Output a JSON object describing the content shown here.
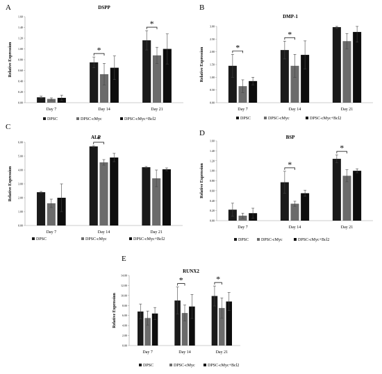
{
  "colors": {
    "DPSC": "#1a1a1a",
    "DPSC-cMyc": "#6b6b6b",
    "DPSC-cMyc+Bcl2": "#0d0d0d",
    "axis": "#9a9a9a",
    "error": "#444444"
  },
  "chart_data": [
    {
      "letter": "A",
      "type": "bar",
      "title": "DSPP",
      "ylabel": "Relative Expression",
      "categories": [
        "Day 7",
        "Day 14",
        "Day 21"
      ],
      "ylim": [
        0,
        1.6
      ],
      "yticks": [
        "0.00",
        "0.20",
        "0.40",
        "0.60",
        "0.80",
        "1.00",
        "1.20",
        "1.40",
        "1.60"
      ],
      "series": [
        {
          "name": "DPSC",
          "values": [
            0.1,
            0.75,
            1.16
          ],
          "errors": [
            0.02,
            0.1,
            0.18
          ]
        },
        {
          "name": "DPSC-cMyc",
          "values": [
            0.07,
            0.53,
            0.88
          ],
          "errors": [
            0.02,
            0.2,
            0.15
          ]
        },
        {
          "name": "DPSC-cMyc+Bcl2",
          "values": [
            0.09,
            0.65,
            1.0
          ],
          "errors": [
            0.05,
            0.22,
            0.28
          ]
        }
      ],
      "significance": [
        {
          "day": "Day 14",
          "label": "*"
        },
        {
          "day": "Day 21",
          "label": "*"
        }
      ],
      "legend": [
        "DPSC",
        "DPSC-cMyc",
        "DPSC-cMyc+Bcl2"
      ]
    },
    {
      "letter": "B",
      "type": "bar",
      "title": "DMP-1",
      "ylabel": "Relative Expression",
      "categories": [
        "Day 7",
        "Day 14",
        "Day 21"
      ],
      "ylim": [
        0,
        3.0
      ],
      "yticks": [
        "0.00",
        "0.50",
        "1.00",
        "1.50",
        "2.00",
        "2.50",
        "3.00"
      ],
      "series": [
        {
          "name": "DPSC",
          "values": [
            1.45,
            2.07,
            2.97
          ],
          "errors": [
            0.45,
            0.35,
            0.05
          ]
        },
        {
          "name": "DPSC-cMyc",
          "values": [
            0.65,
            1.45,
            2.42
          ],
          "errors": [
            0.25,
            0.45,
            0.3
          ]
        },
        {
          "name": "DPSC-cMyc+Bcl2",
          "values": [
            0.85,
            1.88,
            2.78
          ],
          "errors": [
            0.15,
            0.55,
            0.4
          ]
        }
      ],
      "significance": [
        {
          "day": "Day 7",
          "label": "*"
        },
        {
          "day": "Day 14",
          "label": "*"
        }
      ],
      "legend": [
        "DPSC",
        "DPSC-cMyc",
        "DPSC-cMyc+Bcl2"
      ]
    },
    {
      "letter": "C",
      "type": "bar",
      "title": "ALP",
      "ylabel": "Relative Expression",
      "categories": [
        "Day 7",
        "Day 14",
        "Day 21"
      ],
      "ylim": [
        0,
        6.0
      ],
      "yticks": [
        "0.00",
        "1.00",
        "2.00",
        "3.00",
        "4.00",
        "5.00",
        "6.00"
      ],
      "series": [
        {
          "name": "DPSC",
          "values": [
            2.4,
            5.7,
            4.2
          ],
          "errors": [
            0.05,
            0.05,
            0.05
          ]
        },
        {
          "name": "DPSC-cMyc",
          "values": [
            1.6,
            4.55,
            3.4
          ],
          "errors": [
            0.3,
            0.2,
            0.6
          ]
        },
        {
          "name": "DPSC-cMyc+Bcl2",
          "values": [
            2.0,
            4.9,
            4.05
          ],
          "errors": [
            1.0,
            0.3,
            0.1
          ]
        }
      ],
      "significance": [
        {
          "day": "Day 14",
          "label": "*"
        }
      ],
      "legend": [
        "DPSC",
        "DPSC-cMyc",
        "DPSC-cMyc+Bcl2"
      ]
    },
    {
      "letter": "D",
      "type": "bar",
      "title": "BSP",
      "ylabel": "Relative Expression",
      "categories": [
        "Day 7",
        "Day 14",
        "Day 21"
      ],
      "ylim": [
        0,
        1.6
      ],
      "yticks": [
        "0.00",
        "0.20",
        "0.40",
        "0.60",
        "0.80",
        "1.00",
        "1.20",
        "1.40",
        "1.60"
      ],
      "series": [
        {
          "name": "DPSC",
          "values": [
            0.22,
            0.77,
            1.24
          ],
          "errors": [
            0.13,
            0.22,
            0.08
          ]
        },
        {
          "name": "DPSC-cMyc",
          "values": [
            0.1,
            0.34,
            0.9
          ],
          "errors": [
            0.05,
            0.05,
            0.12
          ]
        },
        {
          "name": "DPSC-cMyc+Bcl2",
          "values": [
            0.15,
            0.55,
            1.0
          ],
          "errors": [
            0.1,
            0.06,
            0.04
          ]
        }
      ],
      "significance": [
        {
          "day": "Day 14",
          "label": "*"
        },
        {
          "day": "Day 21",
          "label": "*"
        }
      ],
      "legend": [
        "DPSC",
        "DPSC-cMyc",
        "DPSC-cMyc+Bcl2"
      ]
    },
    {
      "letter": "E",
      "type": "bar",
      "title": "RUNX2",
      "ylabel": "Relative Expression",
      "categories": [
        "Day 7",
        "Day 14",
        "Day 21"
      ],
      "ylim": [
        0,
        14.0
      ],
      "yticks": [
        "0.00",
        "2.00",
        "4.00",
        "6.00",
        "8.00",
        "10.00",
        "12.00",
        "14.00"
      ],
      "series": [
        {
          "name": "DPSC",
          "values": [
            6.8,
            9.0,
            9.9
          ],
          "errors": [
            1.5,
            2.7,
            2.0
          ]
        },
        {
          "name": "DPSC-cMyc",
          "values": [
            5.5,
            6.5,
            7.5
          ],
          "errors": [
            1.4,
            1.6,
            2.0
          ]
        },
        {
          "name": "DPSC-cMyc+Bcl2",
          "values": [
            6.4,
            7.8,
            8.8
          ],
          "errors": [
            1.2,
            2.4,
            1.8
          ]
        }
      ],
      "significance": [
        {
          "day": "Day 14",
          "label": "*"
        },
        {
          "day": "Day 21",
          "label": "*"
        }
      ],
      "legend": [
        "DPSC",
        "DPSC-cMyc",
        "DPSC-cMyc+Bcl2"
      ]
    }
  ]
}
